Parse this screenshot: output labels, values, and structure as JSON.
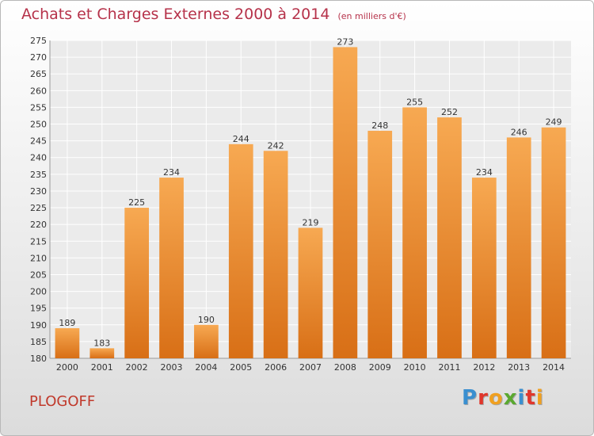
{
  "header": {
    "title": "Achats et Charges Externes 2000 à 2014",
    "unit": "(en milliers d'€)"
  },
  "footer": {
    "city": "PLOGOFF",
    "logo_text": "Proxiti"
  },
  "chart_data": {
    "type": "bar",
    "categories": [
      "2000",
      "2001",
      "2002",
      "2003",
      "2004",
      "2005",
      "2006",
      "2007",
      "2008",
      "2009",
      "2010",
      "2011",
      "2012",
      "2013",
      "2014"
    ],
    "values": [
      189,
      183,
      225,
      234,
      190,
      244,
      242,
      219,
      273,
      248,
      255,
      252,
      234,
      246,
      249
    ],
    "title": "Achats et Charges Externes 2000 à 2014",
    "ylim": [
      180,
      275
    ],
    "yticks": [
      180,
      185,
      190,
      195,
      200,
      205,
      210,
      215,
      220,
      225,
      230,
      235,
      240,
      245,
      250,
      255,
      260,
      265,
      270,
      275
    ],
    "grid": true,
    "bar_color": "#f0882a"
  }
}
